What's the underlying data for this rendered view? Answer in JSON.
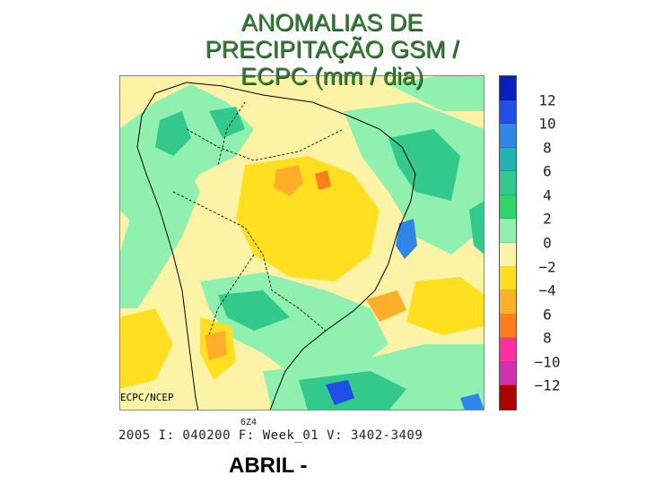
{
  "title": {
    "line1": "ANOMALIAS DE",
    "line2": "PRECIPITAÇÃO GSM /",
    "line3": "ECPC (mm / dia)"
  },
  "map": {
    "credit": "ECPC/NCEP"
  },
  "colorbar": {
    "colors": [
      "#0a1fbf",
      "#1f4fe6",
      "#2f86e6",
      "#21b3b3",
      "#33c98c",
      "#2fd46a",
      "#8ff0b0",
      "#fdf3a6",
      "#ffdf1f",
      "#ffae2a",
      "#ff7d1f",
      "#ff2fa0",
      "#d42fb0",
      "#b00000"
    ],
    "labels": [
      "12",
      "10",
      "8",
      "6",
      "4",
      "2",
      "0",
      "−2",
      "−4",
      "6",
      "8",
      "−10",
      "−12"
    ]
  },
  "footer": {
    "small_label": "6Z4",
    "line": "2005 I: 040200 F: Week_01 V: 3402-3409"
  },
  "month_label": "ABRIL -"
}
